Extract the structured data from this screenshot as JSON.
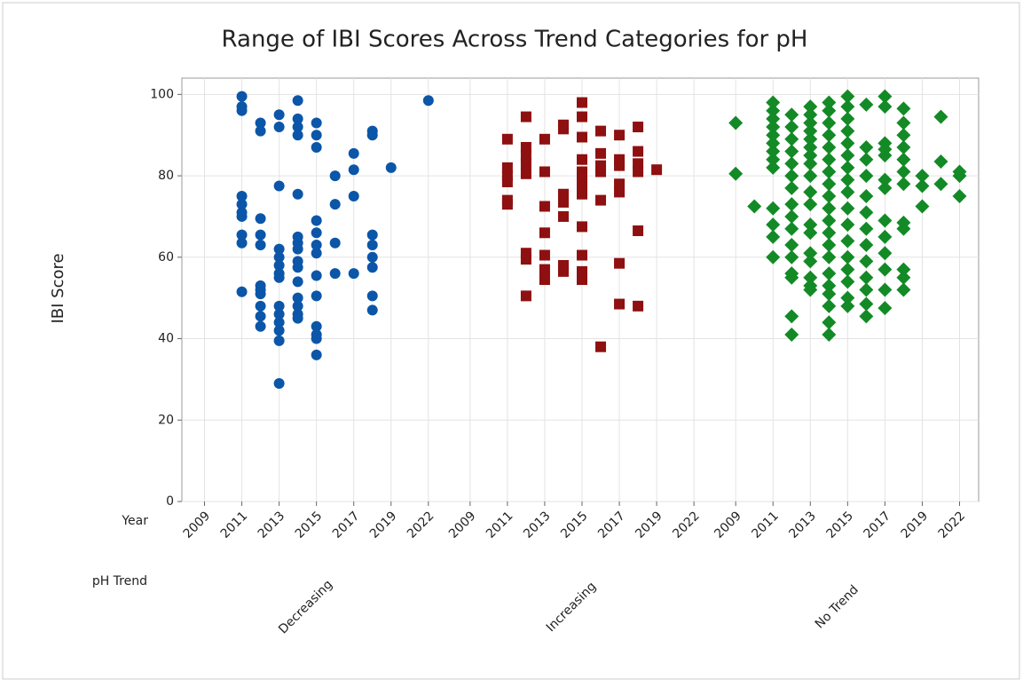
{
  "chart_data": {
    "type": "scatter",
    "title": "Range of IBI Scores Across Trend Categories for pH",
    "y_label": "IBI Score",
    "x_label": "Year",
    "group_label": "pH Trend",
    "categories": [
      "2009",
      null,
      "2011",
      null,
      "2013",
      null,
      "2015",
      null,
      "2017",
      null,
      "2019",
      null,
      "2022"
    ],
    "ylim": [
      0,
      104
    ],
    "yticks": [
      0,
      20,
      40,
      60,
      80,
      100
    ],
    "grid": true,
    "series": [
      {
        "name": "Decreasing",
        "color": "#0b56a8",
        "marker": "circle",
        "values": [
          [],
          [],
          [
            99.5,
            97,
            96,
            75,
            73,
            71,
            70,
            65.5,
            63.5,
            51.5
          ],
          [
            93,
            91,
            69.5,
            65.5,
            63,
            53,
            52,
            51,
            48,
            45.5,
            43
          ],
          [
            95,
            92,
            77.5,
            62,
            60,
            58,
            56,
            55,
            48,
            46,
            44,
            42,
            39.5,
            29
          ],
          [
            98.5,
            94,
            92,
            90,
            75.5,
            65,
            63.5,
            62,
            59,
            57.5,
            54,
            50,
            48,
            46,
            45
          ],
          [
            93,
            90,
            87,
            69,
            66,
            63,
            61,
            55.5,
            50.5,
            43,
            41,
            40,
            36
          ],
          [
            80,
            73,
            63.5,
            56
          ],
          [
            85.5,
            81.5,
            75,
            56
          ],
          [
            91,
            90,
            65.5,
            63,
            60,
            57.5,
            50.5,
            47
          ],
          [
            82
          ],
          [],
          [
            98.5
          ]
        ]
      },
      {
        "name": "Increasing",
        "color": "#8e1010",
        "marker": "square",
        "values": [
          [],
          [],
          [
            89,
            82,
            80,
            78.5,
            74,
            73
          ],
          [
            94.5,
            87,
            85,
            83,
            80.5,
            61,
            59.5,
            50.5
          ],
          [
            89,
            81,
            72.5,
            66,
            60.5,
            57,
            54.5
          ],
          [
            92.5,
            91.5,
            75.5,
            73.5,
            70,
            58,
            56.5
          ],
          [
            98,
            94.5,
            89.5,
            84,
            81,
            78.5,
            77,
            75.5,
            67.5,
            60.5,
            56.5,
            55,
            54.5
          ],
          [
            91,
            85.5,
            82.5,
            81,
            74,
            38
          ],
          [
            90,
            84,
            82.5,
            78,
            76,
            58.5,
            48.5
          ],
          [
            92,
            86,
            83,
            81,
            66.5,
            48
          ],
          [
            81.5
          ],
          [],
          []
        ]
      },
      {
        "name": "No Trend",
        "color": "#138a26",
        "marker": "diamond",
        "values": [
          [
            93,
            80.5
          ],
          [
            72.5
          ],
          [
            98,
            96,
            94,
            92,
            90,
            88,
            86,
            84,
            82,
            72,
            68,
            65,
            60
          ],
          [
            95,
            92,
            89,
            86,
            83,
            80,
            77,
            73,
            70,
            67,
            63,
            60,
            56,
            55,
            45.5,
            41
          ],
          [
            97,
            95,
            93,
            91,
            89,
            87,
            85,
            83,
            80,
            76,
            73,
            68,
            66,
            61,
            59,
            55,
            53,
            52
          ],
          [
            98,
            96,
            93,
            90,
            87,
            84,
            81,
            78,
            75,
            72,
            69,
            66,
            63,
            60,
            56,
            53,
            51,
            48,
            44,
            41
          ],
          [
            99.5,
            97,
            94,
            91,
            88,
            85,
            82,
            79,
            76,
            72,
            68,
            64,
            60,
            57,
            54,
            50,
            48
          ],
          [
            97.5,
            87,
            84,
            80,
            75,
            71,
            67,
            63,
            59,
            55,
            52,
            48.5,
            45.5
          ],
          [
            99.5,
            97,
            88,
            86.5,
            85,
            79,
            77,
            69,
            65,
            61,
            57,
            52,
            47.5
          ],
          [
            96.5,
            93,
            90,
            87,
            84,
            81,
            78,
            68.5,
            67,
            57,
            55,
            52
          ],
          [
            80,
            77.5,
            72.5
          ],
          [
            94.5,
            83.5,
            78
          ],
          [
            81,
            80,
            75
          ]
        ]
      }
    ]
  }
}
